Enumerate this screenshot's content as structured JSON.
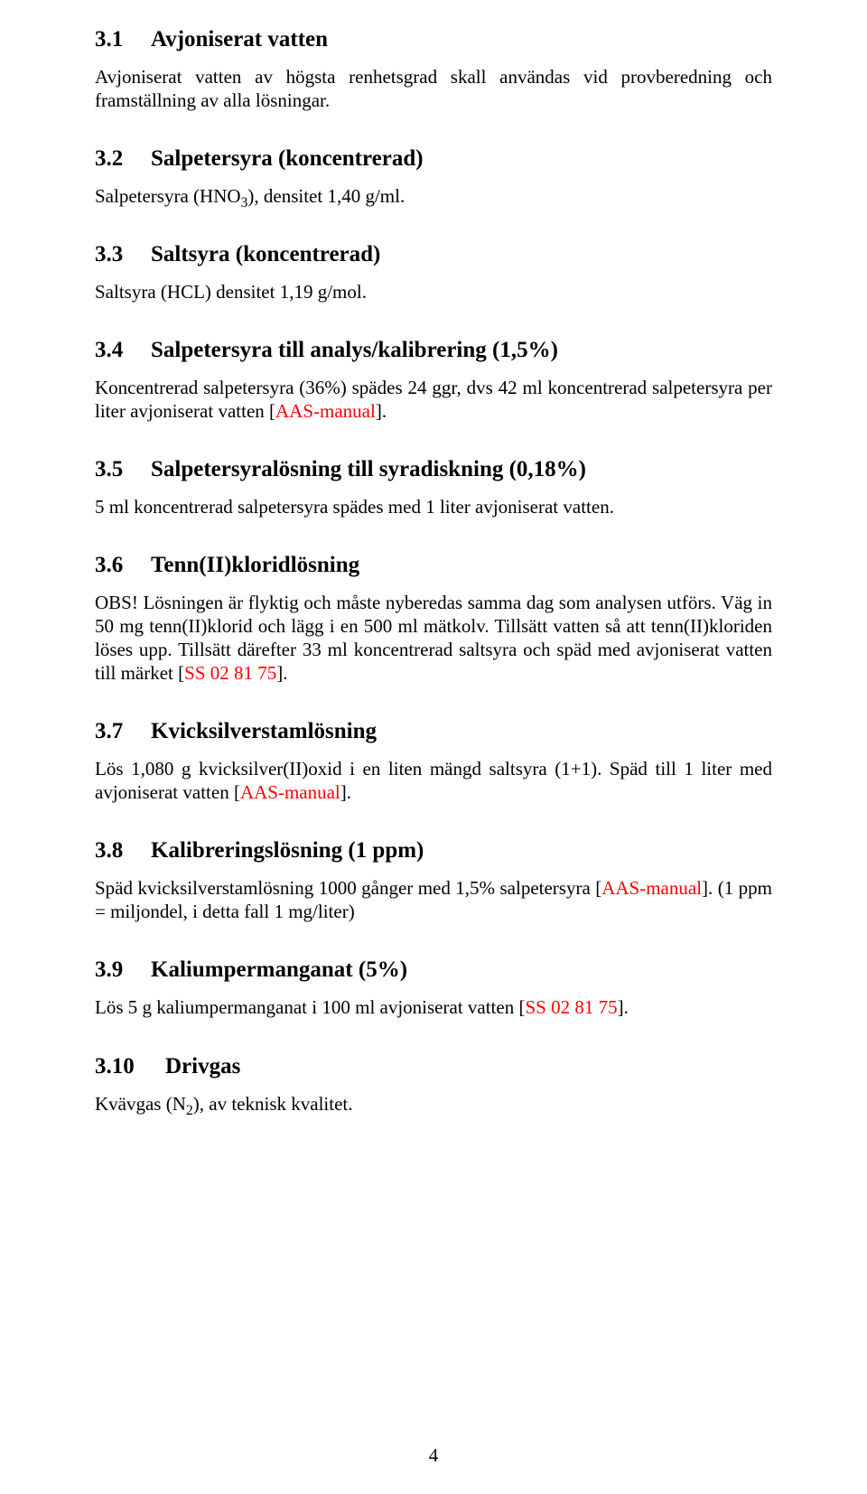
{
  "sections": {
    "s31": {
      "num": "3.1",
      "title": "Avjoniserat vatten",
      "body": "Avjoniserat vatten av högsta renhetsgrad skall användas vid provberedning och framställning av alla lösningar."
    },
    "s32": {
      "num": "3.2",
      "title": "Salpetersyra (koncentrerad)",
      "body_pre": "Salpetersyra (HNO",
      "body_sub": "3",
      "body_post": "), densitet 1,40 g/ml."
    },
    "s33": {
      "num": "3.3",
      "title": "Saltsyra (koncentrerad)",
      "body": "Saltsyra (HCL) densitet 1,19 g/mol."
    },
    "s34": {
      "num": "3.4",
      "title": "Salpetersyra till analys/kalibrering (1,5%)",
      "body_pre": "Koncentrerad salpetersyra (36%) spädes 24 ggr, dvs 42 ml koncentrerad salpetersyra per liter avjoniserat vatten [",
      "ref": "AAS-manual",
      "body_post": "]."
    },
    "s35": {
      "num": "3.5",
      "title": "Salpetersyralösning till syradiskning (0,18%)",
      "body": "5 ml koncentrerad salpetersyra spädes med 1 liter avjoniserat vatten."
    },
    "s36": {
      "num": "3.6",
      "title": "Tenn(II)kloridlösning",
      "body_pre": "OBS! Lösningen är flyktig och måste nyberedas samma dag som analysen utförs. Väg in 50 mg tenn(II)klorid och lägg i en 500 ml mätkolv. Tillsätt vatten så att tenn(II)kloriden löses upp. Tillsätt därefter 33 ml koncentrerad saltsyra och späd med avjoniserat vatten till märket [",
      "ref": "SS 02 81 75",
      "body_post": "]."
    },
    "s37": {
      "num": "3.7",
      "title": "Kvicksilverstamlösning",
      "body_pre": "Lös 1,080 g kvicksilver(II)oxid i en liten mängd saltsyra (1+1). Späd till 1 liter med avjoniserat vatten [",
      "ref": "AAS-manual",
      "body_post": "]."
    },
    "s38": {
      "num": "3.8",
      "title": "Kalibreringslösning (1 ppm)",
      "body_pre": "Späd kvicksilverstamlösning 1000 gånger med 1,5% salpetersyra [",
      "ref": "AAS-manual",
      "body_post": "]. (1 ppm = miljondel, i detta fall 1 mg/liter)"
    },
    "s39": {
      "num": "3.9",
      "title": "Kaliumpermanganat (5%)",
      "body_pre": "Lös 5 g kaliumpermanganat i 100 ml avjoniserat vatten [",
      "ref": "SS 02 81 75",
      "body_post": "]."
    },
    "s310": {
      "num": "3.10",
      "title": "Drivgas",
      "body_pre": "Kvävgas (N",
      "body_sub": "2",
      "body_post": "), av teknisk kvalitet."
    }
  },
  "page_number": "4"
}
